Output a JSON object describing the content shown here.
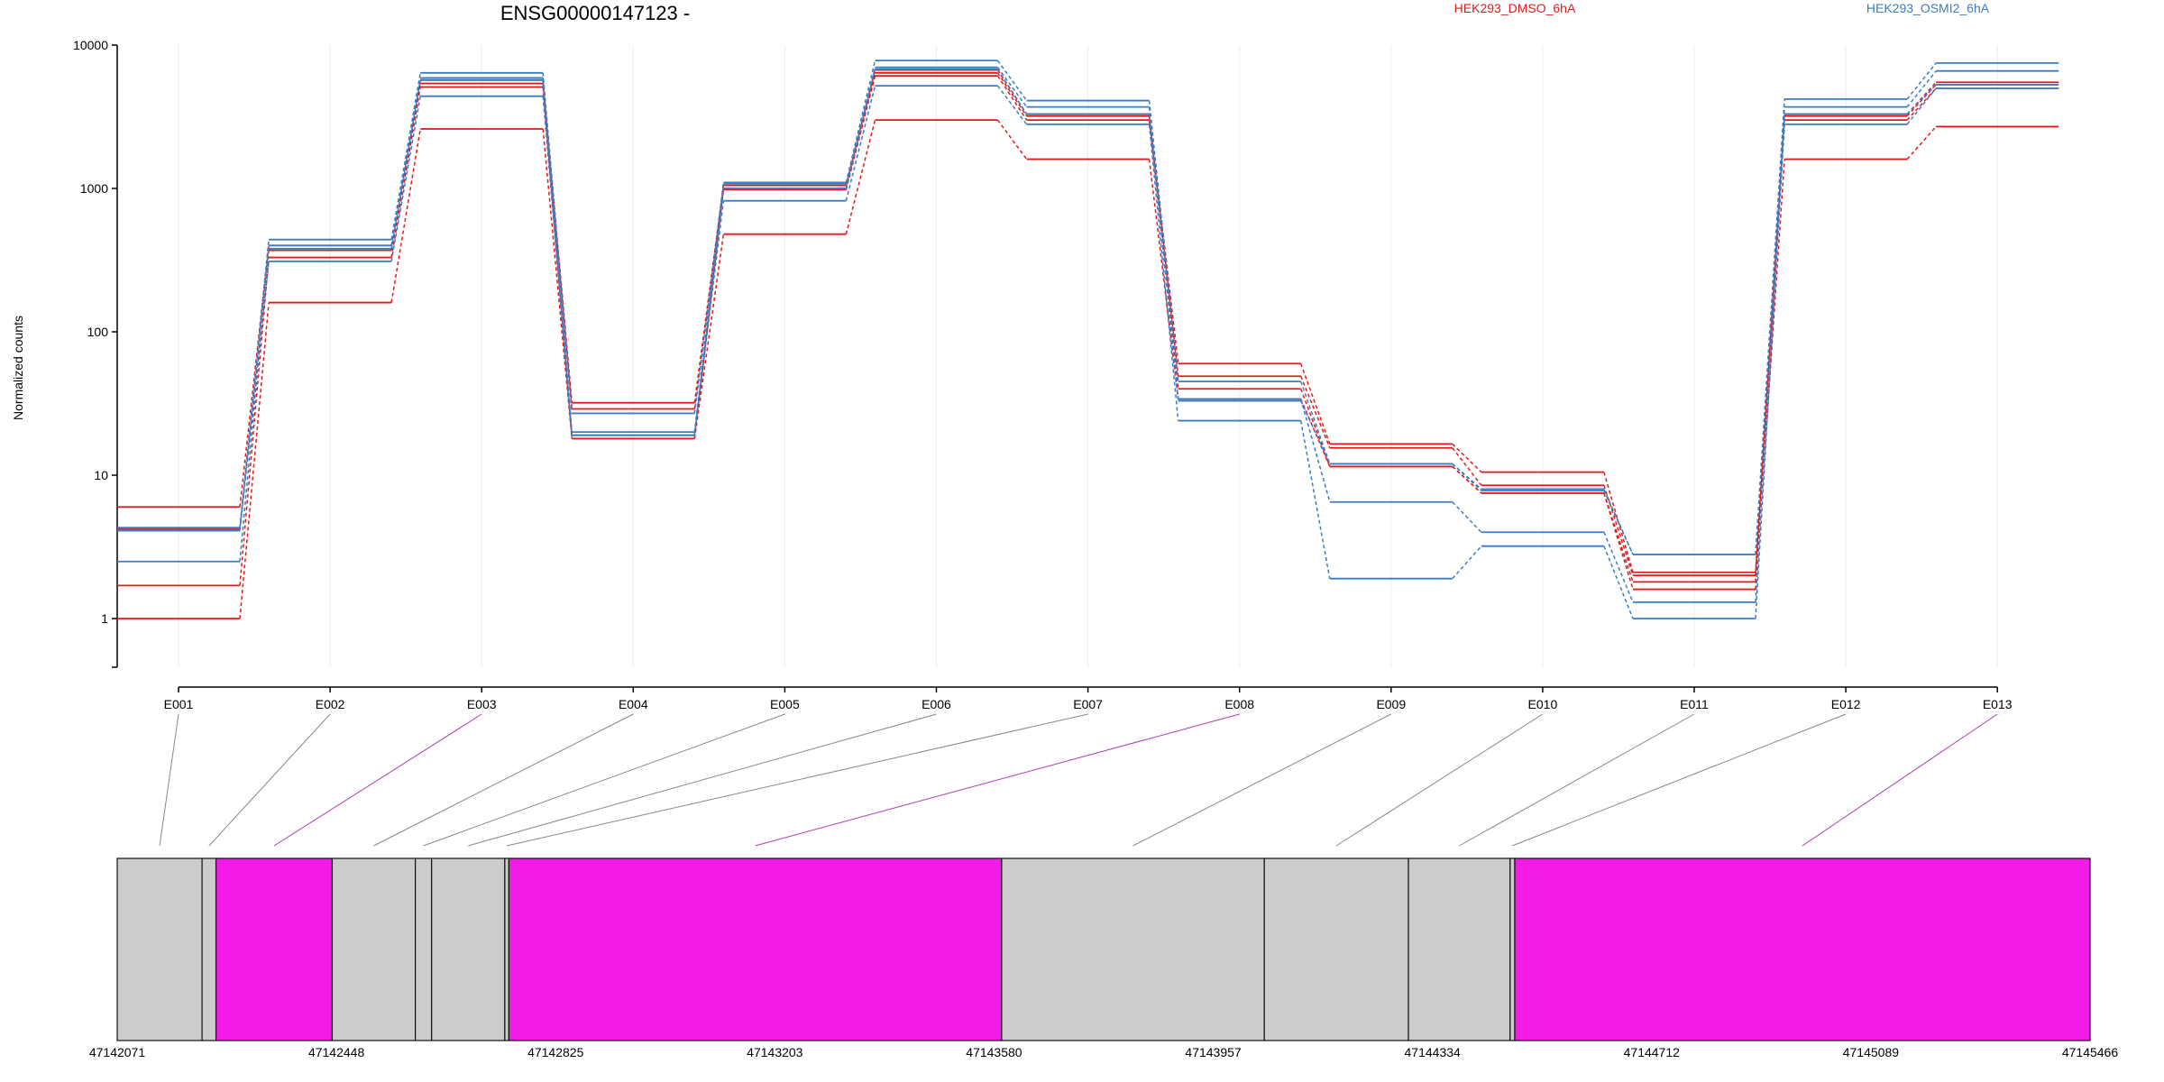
{
  "chart_data": {
    "type": "line",
    "title": "ENSG00000147123 -",
    "ylabel": "Normalized counts",
    "xlabel": "",
    "yscale": "log",
    "ylim": [
      0.5,
      10000
    ],
    "ytick_labels": [
      "1",
      "10",
      "100",
      "1000",
      "10000"
    ],
    "yticks": [
      1,
      10,
      100,
      1000,
      10000
    ],
    "grid": "vertical",
    "legend_placement": "top-right",
    "colors": {
      "HEK293_DMSO_6hA": "#e31a1c",
      "HEK293_OSMI2_6hA": "#3a7dc4"
    },
    "categories": [
      "E001",
      "E002",
      "E003",
      "E004",
      "E005",
      "E006",
      "E007",
      "E008",
      "E009",
      "E010",
      "E011",
      "E012",
      "E013"
    ],
    "series": [
      {
        "name": "HEK293_DMSO_6hA",
        "replicate": 1,
        "values": [
          6.0,
          400,
          5700,
          32,
          1050,
          6700,
          3300,
          60,
          16.5,
          10.5,
          2.1,
          3300,
          5500
        ]
      },
      {
        "name": "HEK293_DMSO_6hA",
        "replicate": 2,
        "values": [
          4.2,
          370,
          5400,
          29,
          1000,
          6400,
          3200,
          49,
          15.5,
          8.5,
          2.0,
          3200,
          5300
        ]
      },
      {
        "name": "HEK293_DMSO_6hA",
        "replicate": 3,
        "values": [
          1.7,
          330,
          5100,
          18,
          980,
          6100,
          3000,
          40,
          11.5,
          7.5,
          1.8,
          3000,
          5000
        ]
      },
      {
        "name": "HEK293_DMSO_6hA",
        "replicate": 4,
        "values": [
          1.0,
          160,
          2600,
          18,
          480,
          3000,
          1600,
          34,
          11.5,
          7.5,
          1.6,
          1600,
          2700
        ]
      },
      {
        "name": "HEK293_OSMI2_6hA",
        "replicate": 1,
        "values": [
          4.3,
          440,
          6400,
          27,
          1100,
          7800,
          4100,
          45,
          12,
          8.0,
          2.8,
          4200,
          7500
        ]
      },
      {
        "name": "HEK293_OSMI2_6hA",
        "replicate": 2,
        "values": [
          4.3,
          400,
          5900,
          20,
          1080,
          7000,
          3700,
          33,
          12,
          7.8,
          2.8,
          3700,
          6600
        ]
      },
      {
        "name": "HEK293_OSMI2_6hA",
        "replicate": 3,
        "values": [
          2.5,
          380,
          5700,
          19,
          1000,
          6800,
          3300,
          34,
          6.5,
          4.0,
          1.3,
          3300,
          5300
        ]
      },
      {
        "name": "HEK293_OSMI2_6hA",
        "replicate": 4,
        "values": [
          4.1,
          310,
          4400,
          19,
          820,
          5200,
          2800,
          24,
          1.9,
          3.2,
          1.0,
          2800,
          5000
        ]
      }
    ],
    "gene_model": {
      "start": 47142071,
      "end": 47145466,
      "axis_labels": [
        "47142071",
        "47142448",
        "47142825",
        "47143203",
        "47143580",
        "47143957",
        "47144334",
        "47144712",
        "47145089",
        "47145466"
      ],
      "exons": [
        {
          "id": "E001",
          "start": 47142071,
          "end": 47142217,
          "highlight": false
        },
        {
          "id": "E002",
          "start": 47142217,
          "end": 47142241,
          "highlight": false
        },
        {
          "id": "E003",
          "start": 47142241,
          "end": 47142441,
          "highlight": true
        },
        {
          "id": "E004",
          "start": 47142441,
          "end": 47142584,
          "highlight": false
        },
        {
          "id": "E005",
          "start": 47142584,
          "end": 47142612,
          "highlight": false
        },
        {
          "id": "E006",
          "start": 47142612,
          "end": 47142738,
          "highlight": false
        },
        {
          "id": "E007",
          "start": 47142738,
          "end": 47142745,
          "highlight": false
        },
        {
          "id": "E008",
          "start": 47142745,
          "end": 47143593,
          "highlight": true
        },
        {
          "id": "E009",
          "start": 47143593,
          "end": 47144045,
          "highlight": false
        },
        {
          "id": "E010",
          "start": 47144045,
          "end": 47144293,
          "highlight": false
        },
        {
          "id": "E011",
          "start": 47144293,
          "end": 47144468,
          "highlight": false
        },
        {
          "id": "E012",
          "start": 47144468,
          "end": 47144476,
          "highlight": false
        },
        {
          "id": "E013",
          "start": 47144476,
          "end": 47145466,
          "highlight": true
        }
      ],
      "exon_color": "#cccccc",
      "highlight_color": "#f21be8"
    }
  }
}
